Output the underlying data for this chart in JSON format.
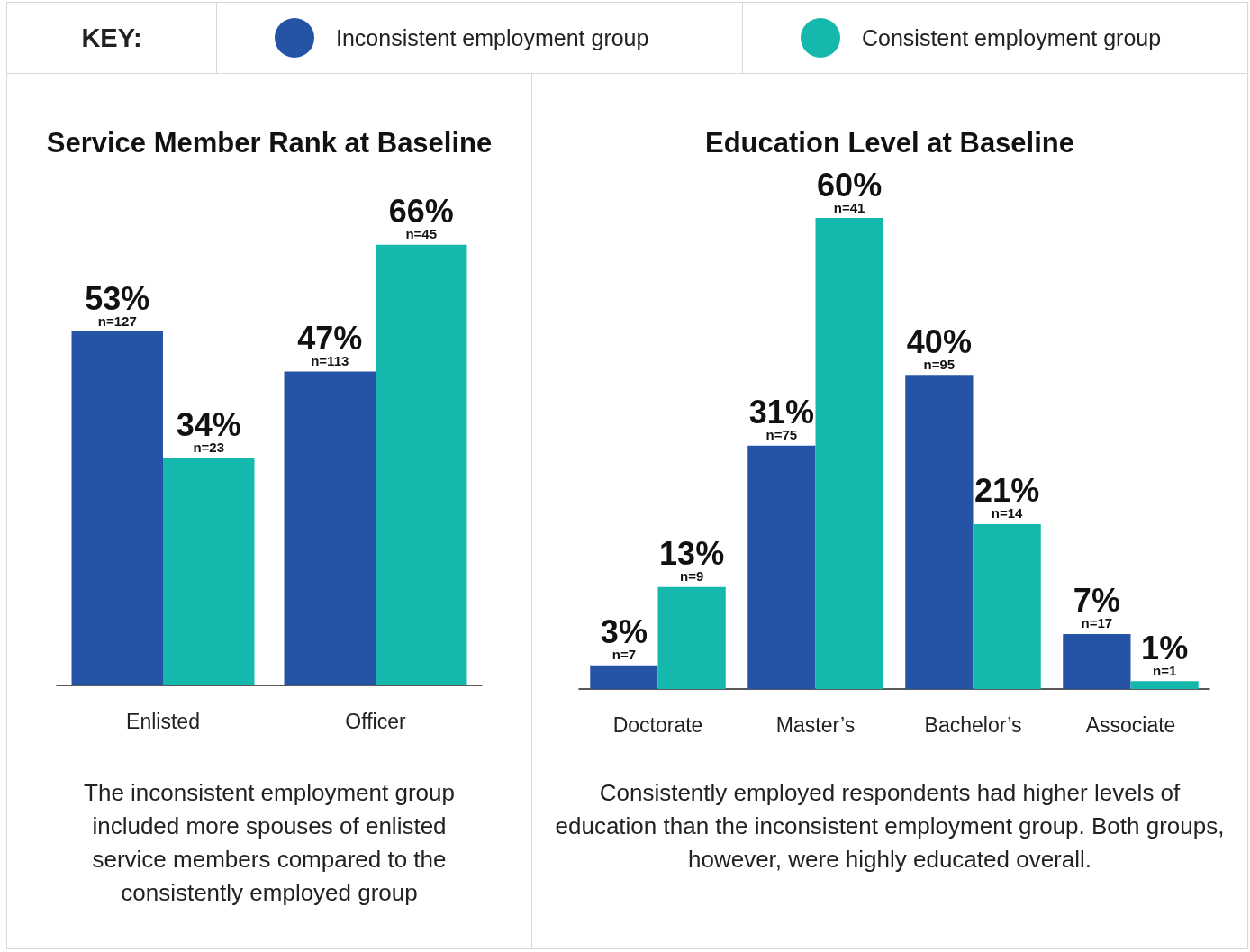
{
  "chart_data": [
    {
      "type": "bar",
      "title": "Service Member Rank at Baseline",
      "legend_title": "KEY:",
      "legend": "top",
      "tick_labels": "x",
      "categories": [
        "Enlisted",
        "Officer"
      ],
      "series": [
        {
          "name": "Inconsistent employment group",
          "color": "#2553a6",
          "values": [
            53,
            47
          ],
          "value_labels": [
            "53%\nn=127",
            "47%\nn=113"
          ]
        },
        {
          "name": "Consistent employment group",
          "color": "#15b8ad",
          "values": [
            34,
            66
          ],
          "value_labels": [
            "34%\nn=23",
            "66%\nn=45"
          ]
        }
      ],
      "annotations": [
        "The inconsistent employment group included more spouses of enlisted service members compared to the consistently employed group"
      ]
    },
    {
      "type": "bar",
      "title": "Education Level at Baseline",
      "tick_labels": "x",
      "categories": [
        "Doctorate",
        "Master’s",
        "Bachelor’s",
        "Associate"
      ],
      "series": [
        {
          "color": "#2553a6",
          "values": [
            3,
            31,
            40,
            7
          ],
          "value_labels": [
            "3%\nn=7",
            "31%\nn=75",
            "40%\nn=95",
            "7%\nn=17"
          ]
        },
        {
          "color": "#15b8ad",
          "values": [
            13,
            60,
            21,
            1
          ],
          "value_labels": [
            "13%\nn=9",
            "60%\nn=41",
            "21%\nn=14",
            "1%\nn=1"
          ]
        }
      ],
      "annotations": [
        "Consistently employed respondents had higher levels of education than the inconsistent employment group. Both groups, however, were highly educated overall."
      ]
    }
  ]
}
